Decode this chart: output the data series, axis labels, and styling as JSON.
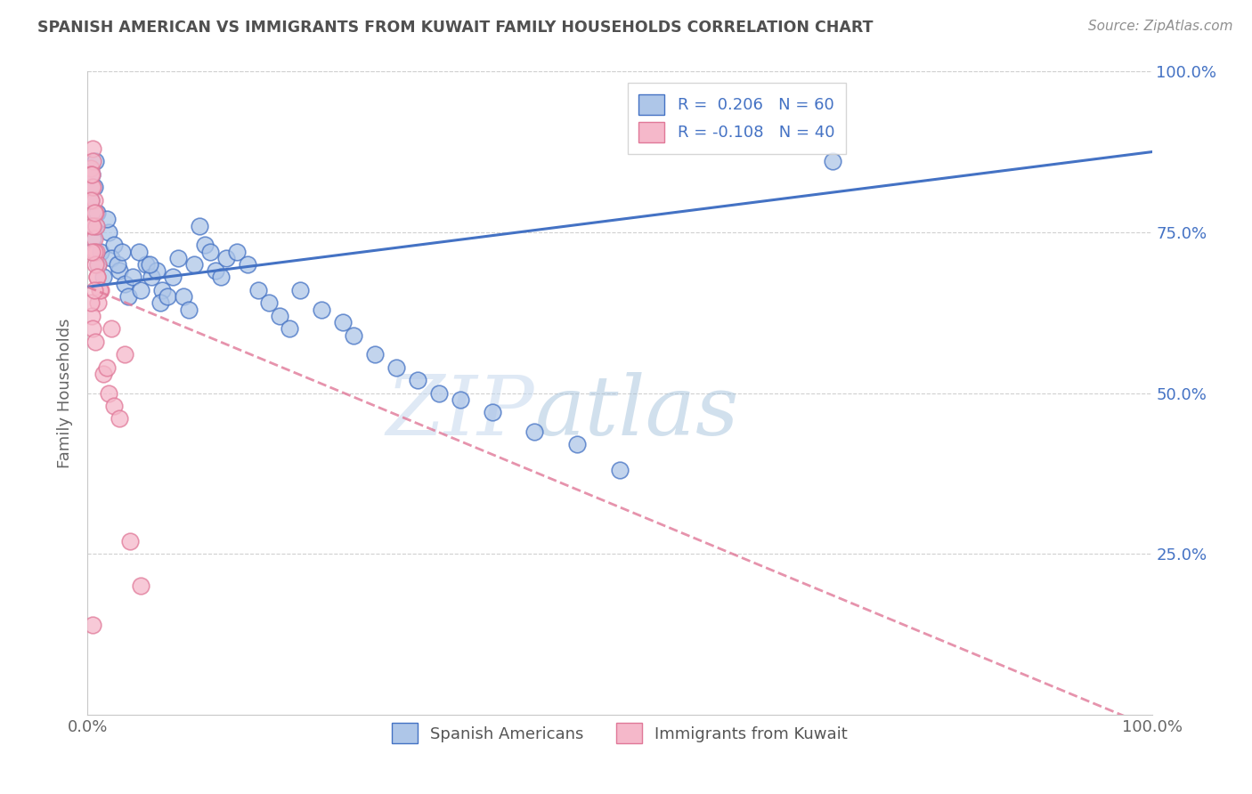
{
  "title": "SPANISH AMERICAN VS IMMIGRANTS FROM KUWAIT FAMILY HOUSEHOLDS CORRELATION CHART",
  "source_text": "Source: ZipAtlas.com",
  "ylabel": "Family Households",
  "watermark_zip": "ZIP",
  "watermark_atlas": "atlas",
  "xlim": [
    0,
    1
  ],
  "ylim": [
    0,
    1
  ],
  "xtick_positions": [
    0,
    1
  ],
  "xtick_labels": [
    "0.0%",
    "100.0%"
  ],
  "ytick_positions": [
    0.25,
    0.5,
    0.75,
    1.0
  ],
  "ytick_labels_right": [
    "25.0%",
    "50.0%",
    "75.0%",
    "100.0%"
  ],
  "blue_R": "0.206",
  "blue_N": "60",
  "pink_R": "-0.108",
  "pink_N": "40",
  "blue_face_color": "#aec6e8",
  "blue_edge_color": "#4472c4",
  "blue_line_color": "#4472c4",
  "pink_face_color": "#f5b8ca",
  "pink_edge_color": "#e07898",
  "pink_line_color": "#e07898",
  "legend_label_blue": "Spanish Americans",
  "legend_label_pink": "Immigrants from Kuwait",
  "title_color": "#505050",
  "source_color": "#909090",
  "grid_color": "#d0d0d0",
  "axis_color": "#c8c8c8",
  "right_tick_color": "#4472c4",
  "blue_line_y0": 0.665,
  "blue_line_y1": 0.875,
  "pink_line_y0": 0.665,
  "pink_line_y1": -0.02,
  "blue_scatter_x": [
    0.005,
    0.008,
    0.01,
    0.012,
    0.015,
    0.003,
    0.006,
    0.009,
    0.004,
    0.007,
    0.02,
    0.025,
    0.018,
    0.022,
    0.03,
    0.035,
    0.028,
    0.032,
    0.038,
    0.042,
    0.05,
    0.055,
    0.048,
    0.06,
    0.065,
    0.058,
    0.07,
    0.068,
    0.075,
    0.08,
    0.085,
    0.09,
    0.095,
    0.1,
    0.11,
    0.105,
    0.115,
    0.12,
    0.13,
    0.125,
    0.14,
    0.15,
    0.16,
    0.17,
    0.18,
    0.19,
    0.2,
    0.22,
    0.24,
    0.25,
    0.27,
    0.29,
    0.31,
    0.33,
    0.35,
    0.38,
    0.42,
    0.46,
    0.5,
    0.7
  ],
  "blue_scatter_y": [
    0.74,
    0.76,
    0.7,
    0.72,
    0.68,
    0.8,
    0.82,
    0.78,
    0.84,
    0.86,
    0.75,
    0.73,
    0.77,
    0.71,
    0.69,
    0.67,
    0.7,
    0.72,
    0.65,
    0.68,
    0.66,
    0.7,
    0.72,
    0.68,
    0.69,
    0.7,
    0.66,
    0.64,
    0.65,
    0.68,
    0.71,
    0.65,
    0.63,
    0.7,
    0.73,
    0.76,
    0.72,
    0.69,
    0.71,
    0.68,
    0.72,
    0.7,
    0.66,
    0.64,
    0.62,
    0.6,
    0.66,
    0.63,
    0.61,
    0.59,
    0.56,
    0.54,
    0.52,
    0.5,
    0.49,
    0.47,
    0.44,
    0.42,
    0.38,
    0.86
  ],
  "pink_scatter_x": [
    0.003,
    0.005,
    0.004,
    0.006,
    0.005,
    0.003,
    0.007,
    0.004,
    0.006,
    0.005,
    0.008,
    0.01,
    0.009,
    0.012,
    0.008,
    0.006,
    0.01,
    0.007,
    0.009,
    0.011,
    0.004,
    0.003,
    0.005,
    0.006,
    0.004,
    0.007,
    0.005,
    0.003,
    0.004,
    0.006,
    0.015,
    0.02,
    0.018,
    0.025,
    0.022,
    0.03,
    0.035,
    0.04,
    0.05,
    0.005
  ],
  "pink_scatter_y": [
    0.85,
    0.88,
    0.82,
    0.8,
    0.86,
    0.84,
    0.78,
    0.76,
    0.74,
    0.82,
    0.72,
    0.7,
    0.68,
    0.66,
    0.76,
    0.72,
    0.64,
    0.7,
    0.68,
    0.66,
    0.62,
    0.64,
    0.6,
    0.66,
    0.72,
    0.58,
    0.76,
    0.8,
    0.84,
    0.78,
    0.53,
    0.5,
    0.54,
    0.48,
    0.6,
    0.46,
    0.56,
    0.27,
    0.2,
    0.14
  ]
}
